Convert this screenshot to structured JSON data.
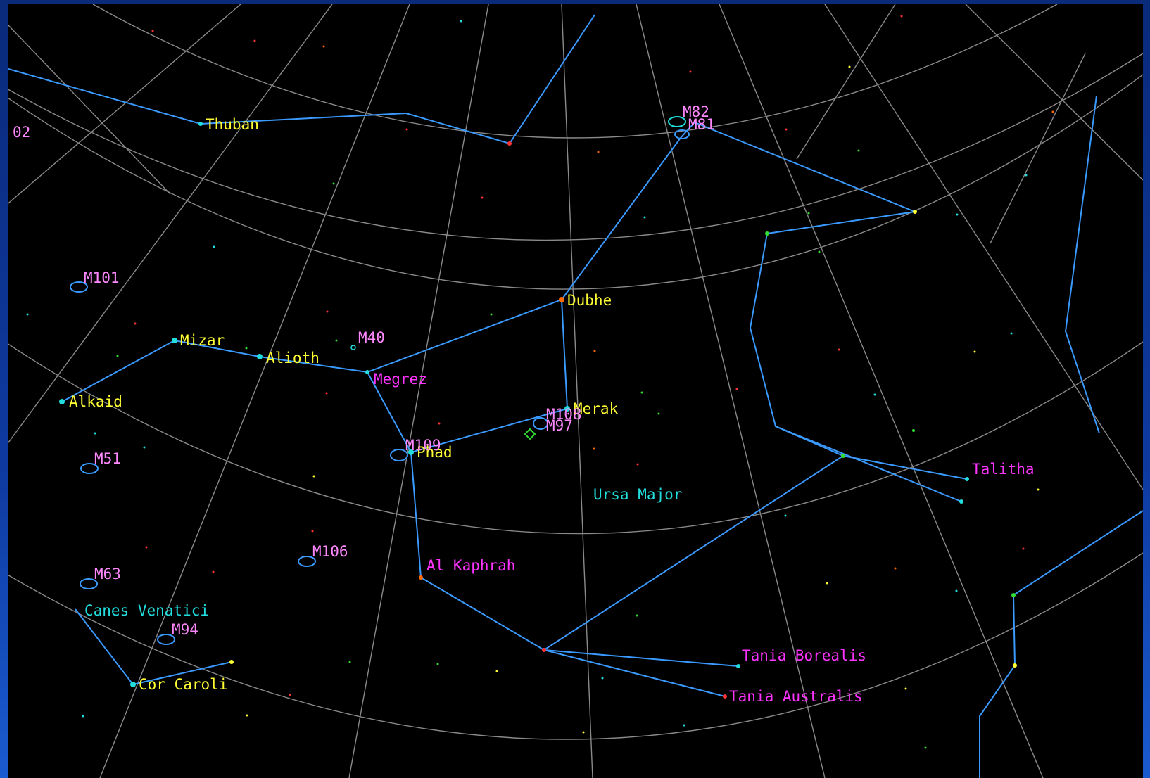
{
  "sky_chart": {
    "constellations": [
      "Ursa Major",
      "Canes Venatici"
    ],
    "star_labels": {
      "thuban": "Thuban",
      "dubhe": "Dubhe",
      "merak": "Merak",
      "phad": "Phad",
      "megrez": "Megrez",
      "alioth": "Alioth",
      "mizar": "Mizar",
      "alkaid": "Alkaid",
      "cor_caroli": "Cor Caroli",
      "talitha": "Talitha",
      "al_kaphrah": "Al Kaphrah",
      "tania_borealis": "Tania Borealis",
      "tania_australis": "Tania Australis"
    },
    "object_labels": {
      "m82": "M82",
      "m81": "M81",
      "m101": "M101",
      "m40": "M40",
      "m108": "M108",
      "m97": "M97",
      "m109": "M109",
      "m51": "M51",
      "m106": "M106",
      "m63": "M63",
      "m94": "M94",
      "edge": "02"
    },
    "colors": {
      "background": "#000000",
      "grid": "#8a8a8a",
      "lines": "#3a9aff",
      "bright_star_label": "#ffff33",
      "named_star_label": "#ff33ff",
      "deep_sky_label": "#ff88ff",
      "constellation_label": "#22dddd"
    }
  }
}
